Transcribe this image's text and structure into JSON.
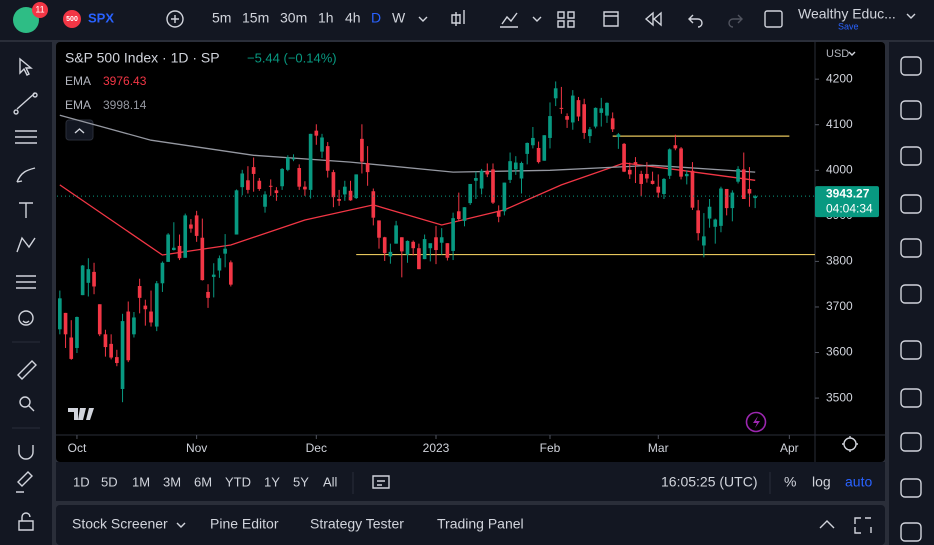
{
  "toolbar": {
    "badge": "11",
    "symbol_badge": "500",
    "symbol": "SPX",
    "intervals": [
      "5m",
      "15m",
      "30m",
      "1h",
      "4h",
      "D",
      "W"
    ],
    "active_interval": "D",
    "layout_name": "Wealthy Educ...",
    "save": "Save"
  },
  "legend": {
    "title": "S&P 500 Index · 1D · SP",
    "change": "−5.44 (−0.14%)"
  },
  "chart_data": {
    "type": "candlestick",
    "currency": "USD",
    "up_color": "#089981",
    "down_color": "#f23645",
    "xlim": [
      -0.5,
      132.5
    ],
    "xticks": [
      {
        "value": 3,
        "label": "Oct"
      },
      {
        "value": 24,
        "label": "Nov"
      },
      {
        "value": 45,
        "label": "Dec"
      },
      {
        "value": 66,
        "label": "2023"
      },
      {
        "value": 86,
        "label": "Feb"
      },
      {
        "value": 105,
        "label": "Mar"
      },
      {
        "value": 128,
        "label": "Apr"
      }
    ],
    "ylim": [
      3419,
      4275
    ],
    "yticks": [
      3500,
      3600,
      3700,
      3800,
      3900,
      4000,
      4100,
      4200
    ],
    "candles": [
      [
        3651,
        3736,
        3640,
        3719
      ],
      [
        3687,
        3687,
        3610,
        3640
      ],
      [
        3633,
        3671,
        3584,
        3586
      ],
      [
        3610,
        3679,
        3599,
        3678
      ],
      [
        3726,
        3792,
        3726,
        3791
      ],
      [
        3753,
        3807,
        3723,
        3783
      ],
      [
        3777,
        3797,
        3728,
        3745
      ],
      [
        3706,
        3706,
        3636,
        3640
      ],
      [
        3640,
        3650,
        3591,
        3612
      ],
      [
        3619,
        3640,
        3585,
        3589
      ],
      [
        3590,
        3606,
        3570,
        3577
      ],
      [
        3520,
        3685,
        3491,
        3669
      ],
      [
        3690,
        3712,
        3579,
        3583
      ],
      [
        3640,
        3689,
        3633,
        3677
      ],
      [
        3746,
        3762,
        3686,
        3720
      ],
      [
        3703,
        3716,
        3659,
        3695
      ],
      [
        3690,
        3736,
        3657,
        3666
      ],
      [
        3657,
        3757,
        3647,
        3752
      ],
      [
        3752,
        3800,
        3733,
        3797
      ],
      [
        3799,
        3862,
        3799,
        3859
      ],
      [
        3825,
        3886,
        3824,
        3830
      ],
      [
        3834,
        3859,
        3803,
        3807
      ],
      [
        3808,
        3905,
        3808,
        3901
      ],
      [
        3881,
        3893,
        3863,
        3872
      ],
      [
        3901,
        3911,
        3843,
        3856
      ],
      [
        3852,
        3894,
        3758,
        3759
      ],
      [
        3733,
        3750,
        3698,
        3720
      ],
      [
        3766,
        3796,
        3721,
        3771
      ],
      [
        3780,
        3813,
        3764,
        3807
      ],
      [
        3817,
        3860,
        3787,
        3828
      ],
      [
        3798,
        3802,
        3745,
        3749
      ],
      [
        3859,
        3958,
        3859,
        3956
      ],
      [
        3963,
        4001,
        3945,
        3993
      ],
      [
        3978,
        4009,
        3949,
        3957
      ],
      [
        4007,
        4028,
        3953,
        3992
      ],
      [
        3977,
        3983,
        3955,
        3959
      ],
      [
        3920,
        3954,
        3907,
        3947
      ],
      [
        3966,
        3980,
        3944,
        3965
      ],
      [
        3956,
        3963,
        3933,
        3950
      ],
      [
        3965,
        4005,
        3957,
        4003
      ],
      [
        4001,
        4033,
        3998,
        4028
      ],
      [
        4024,
        4035,
        4020,
        4026
      ],
      [
        4005,
        4013,
        3957,
        3964
      ],
      [
        3964,
        3976,
        3944,
        3958
      ],
      [
        3957,
        4080,
        3938,
        4080
      ],
      [
        4087,
        4101,
        4056,
        4076
      ],
      [
        4041,
        4080,
        4027,
        4072
      ],
      [
        4053,
        4062,
        3984,
        3999
      ],
      [
        3996,
        4001,
        3919,
        3941
      ],
      [
        3937,
        3957,
        3922,
        3933
      ],
      [
        3947,
        3977,
        3933,
        3964
      ],
      [
        3955,
        3977,
        3933,
        3934
      ],
      [
        3939,
        3991,
        3937,
        3991
      ],
      [
        4069,
        4101,
        3993,
        4019
      ],
      [
        4016,
        4053,
        3966,
        3996
      ],
      [
        3954,
        3960,
        3879,
        3896
      ],
      [
        3890,
        3890,
        3828,
        3852
      ],
      [
        3853,
        3854,
        3801,
        3818
      ],
      [
        3811,
        3839,
        3795,
        3821
      ],
      [
        3839,
        3889,
        3839,
        3879
      ],
      [
        3853,
        3853,
        3765,
        3822
      ],
      [
        3815,
        3846,
        3797,
        3845
      ],
      [
        3843,
        3846,
        3813,
        3829
      ],
      [
        3829,
        3839,
        3783,
        3783
      ],
      [
        3805,
        3859,
        3805,
        3849
      ],
      [
        3829,
        3839,
        3800,
        3840
      ],
      [
        3853,
        3878,
        3794,
        3825
      ],
      [
        3841,
        3873,
        3815,
        3853
      ],
      [
        3840,
        3840,
        3802,
        3808
      ],
      [
        3823,
        3907,
        3803,
        3895
      ],
      [
        3910,
        3951,
        3888,
        3893
      ],
      [
        3889,
        3919,
        3877,
        3919
      ],
      [
        3928,
        3970,
        3924,
        3970
      ],
      [
        3977,
        3997,
        3937,
        3983
      ],
      [
        3960,
        4003,
        3947,
        3999
      ],
      [
        3999,
        4015,
        3985,
        3991
      ],
      [
        4002,
        4015,
        3926,
        3929
      ],
      [
        3911,
        3923,
        3886,
        3898
      ],
      [
        3910,
        3973,
        3901,
        3973
      ],
      [
        3979,
        4039,
        3972,
        4020
      ],
      [
        4002,
        4031,
        3990,
        4017
      ],
      [
        3982,
        4019,
        3949,
        4016
      ],
      [
        4036,
        4061,
        4013,
        4060
      ],
      [
        4055,
        4095,
        4048,
        4071
      ],
      [
        4049,
        4063,
        4015,
        4018
      ],
      [
        4021,
        4077,
        4021,
        4077
      ],
      [
        4071,
        4149,
        4048,
        4119
      ],
      [
        4158,
        4195,
        4141,
        4180
      ],
      [
        4137,
        4183,
        4124,
        4136
      ],
      [
        4119,
        4125,
        4093,
        4111
      ],
      [
        4105,
        4176,
        4089,
        4164
      ],
      [
        4154,
        4161,
        4108,
        4118
      ],
      [
        4145,
        4157,
        4069,
        4082
      ],
      [
        4075,
        4095,
        4060,
        4090
      ],
      [
        4096,
        4138,
        4092,
        4137
      ],
      [
        4126,
        4159,
        4096,
        4136
      ],
      [
        4120,
        4149,
        4104,
        4148
      ],
      [
        4114,
        4127,
        4084,
        4090
      ],
      [
        4073,
        4082,
        4047,
        4079
      ],
      [
        4058,
        4060,
        3996,
        3997
      ],
      [
        4001,
        4017,
        3981,
        3991
      ],
      [
        4018,
        4029,
        3972,
        4012
      ],
      [
        3992,
        3999,
        3943,
        3970
      ],
      [
        3992,
        4018,
        3973,
        3982
      ],
      [
        3977,
        3997,
        3969,
        3970
      ],
      [
        3964,
        3991,
        3940,
        3951
      ],
      [
        3948,
        3983,
        3937,
        3981
      ],
      [
        3988,
        4048,
        3981,
        4046
      ],
      [
        4055,
        4078,
        4044,
        4048
      ],
      [
        4048,
        4051,
        3980,
        3986
      ],
      [
        3987,
        4000,
        3969,
        3992
      ],
      [
        3999,
        4018,
        3913,
        3918
      ],
      [
        3912,
        3935,
        3846,
        3862
      ],
      [
        3835,
        3906,
        3809,
        3855
      ],
      [
        3894,
        3937,
        3874,
        3920
      ],
      [
        3876,
        3894,
        3839,
        3892
      ],
      [
        3878,
        3964,
        3864,
        3960
      ],
      [
        3959,
        3959,
        3901,
        3917
      ],
      [
        3917,
        3956,
        3888,
        3951
      ],
      [
        3975,
        4009,
        3971,
        4003
      ],
      [
        4002,
        4039,
        3937,
        3937
      ],
      [
        3959,
        4007,
        3920,
        3949
      ],
      [
        3939,
        3946,
        3917,
        3943
      ]
    ],
    "series": [
      {
        "name": "EMA",
        "legend_value": 3976.43,
        "color": "#f23645",
        "x": [
          0,
          18,
          30,
          43,
          55,
          67,
          78,
          88,
          99,
          109,
          122
        ],
        "values": [
          3968,
          3814,
          3836,
          3891,
          3924,
          3880,
          3913,
          3968,
          4016,
          4000,
          3978
        ]
      },
      {
        "name": "EMA",
        "legend_value": 3998.14,
        "color": "#9598a1",
        "x": [
          0,
          16,
          34,
          51,
          69,
          86,
          104,
          122
        ],
        "values": [
          4121,
          4066,
          4033,
          4018,
          3996,
          4000,
          4011,
          3996
        ]
      }
    ],
    "hlines": [
      {
        "value": 4075,
        "x": [
          97,
          128
        ],
        "color": "#e6c65c"
      },
      {
        "value": 3815,
        "x": [
          52,
          132.5
        ],
        "color": "#e6c65c"
      }
    ],
    "last_price": 3943.27,
    "countdown": "04:04:34"
  },
  "ranges": [
    "1D",
    "5D",
    "1M",
    "3M",
    "6M",
    "YTD",
    "1Y",
    "5Y",
    "All"
  ],
  "clock": "16:05:25 (UTC)",
  "scale_options": [
    "%",
    "log",
    "auto"
  ],
  "bottom_tabs": [
    "Stock Screener",
    "Pine Editor",
    "Strategy Tester",
    "Trading Panel"
  ]
}
